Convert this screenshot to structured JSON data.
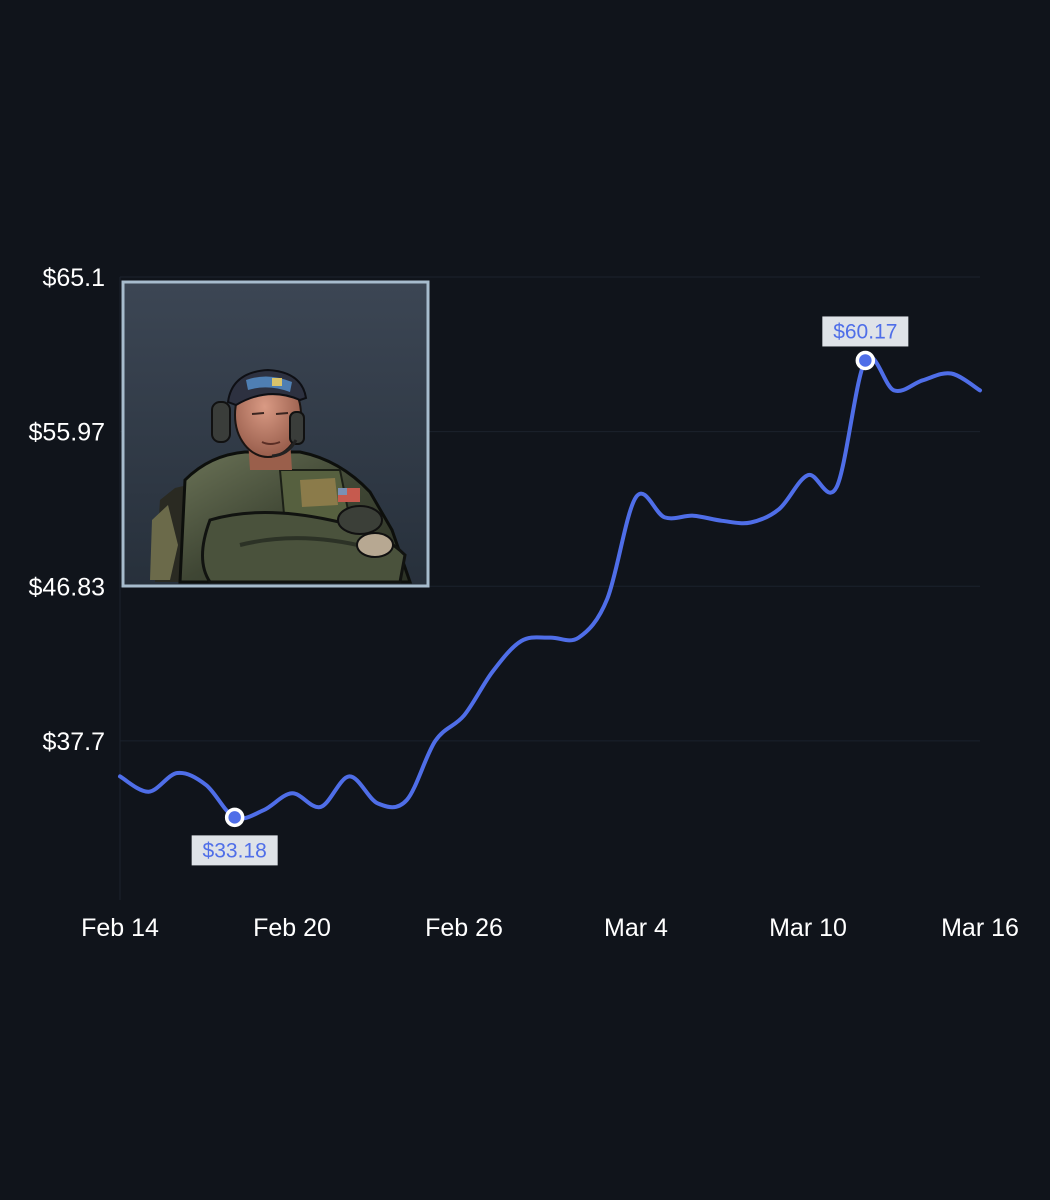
{
  "chart_data": {
    "type": "line",
    "title": "",
    "xlabel": "",
    "ylabel": "",
    "x_tick_labels": [
      "Feb 14",
      "Feb 20",
      "Feb 26",
      "Mar 4",
      "Mar 10",
      "Mar 16"
    ],
    "y_tick_labels": [
      "$65.1",
      "$55.97",
      "$46.83",
      "$37.7"
    ],
    "y_ticks": [
      65.1,
      55.97,
      46.83,
      37.7
    ],
    "ylim": [
      28.3,
      65.1
    ],
    "xlim": [
      "2025-02-14",
      "2025-03-16"
    ],
    "grid": true,
    "line_color": "#4f6ee8",
    "annotations": [
      {
        "label": "$33.18",
        "x": "2025-02-18",
        "y": 33.18,
        "kind": "min"
      },
      {
        "label": "$60.17",
        "x": "2025-03-12",
        "y": 60.17,
        "kind": "max"
      }
    ],
    "series": [
      {
        "x": [
          "2025-02-14",
          "2025-02-15",
          "2025-02-16",
          "2025-02-17",
          "2025-02-18",
          "2025-02-19",
          "2025-02-20",
          "2025-02-21",
          "2025-02-22",
          "2025-02-23",
          "2025-02-24",
          "2025-02-25",
          "2025-02-26",
          "2025-02-27",
          "2025-02-28",
          "2025-03-01",
          "2025-03-02",
          "2025-03-03",
          "2025-03-04",
          "2025-03-05",
          "2025-03-06",
          "2025-03-07",
          "2025-03-08",
          "2025-03-09",
          "2025-03-10",
          "2025-03-11",
          "2025-03-12",
          "2025-03-13",
          "2025-03-14",
          "2025-03-15",
          "2025-03-16"
        ],
        "values": [
          35.6,
          34.7,
          35.8,
          35.1,
          33.18,
          33.6,
          34.6,
          33.8,
          35.6,
          34.0,
          34.2,
          37.7,
          39.2,
          41.8,
          43.6,
          43.8,
          43.8,
          46.1,
          52.1,
          50.9,
          51.0,
          50.7,
          50.6,
          51.4,
          53.4,
          52.7,
          60.17,
          58.4,
          59.0,
          59.4,
          58.4
        ]
      }
    ]
  },
  "image": {
    "name": "operator-portrait",
    "icon": "soldier-icon"
  }
}
